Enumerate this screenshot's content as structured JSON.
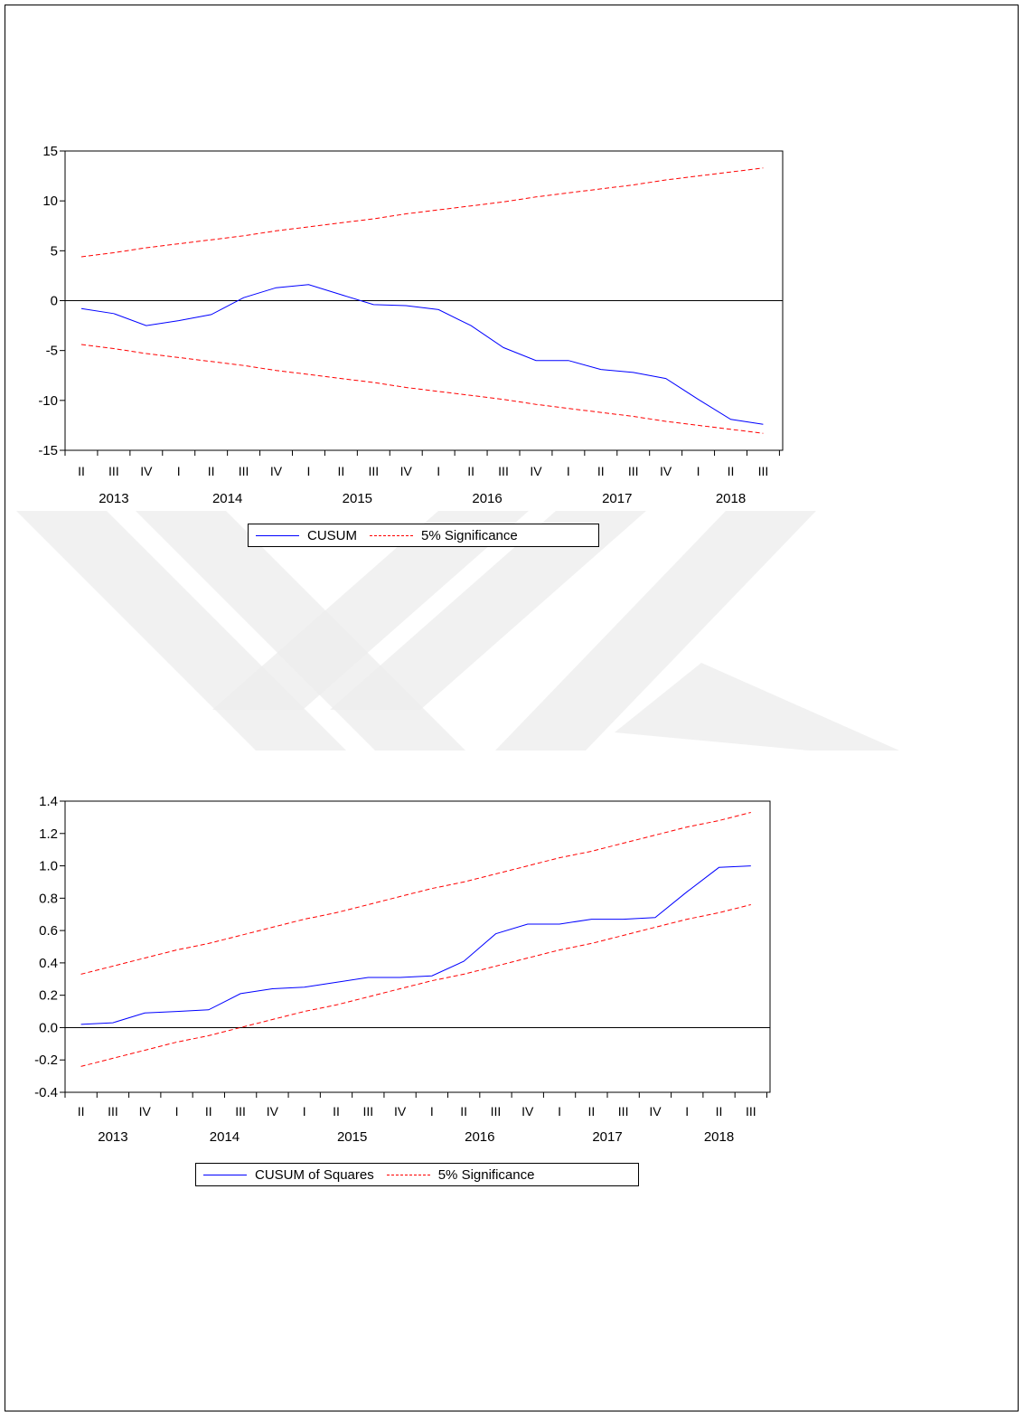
{
  "colors": {
    "statistic": "#0000ff",
    "bounds": "#ff0000",
    "zero_line": "#000000",
    "watermark": "#ececec"
  },
  "watermark": {
    "icon": "yok-logo-icon"
  },
  "chart_data": [
    {
      "type": "line",
      "title": "",
      "xlabel": "",
      "ylabel": "",
      "ylim": [
        -15,
        15
      ],
      "yticks": [
        "15",
        "10",
        "5",
        "0",
        "-5",
        "-10",
        "-15"
      ],
      "ytick_values": [
        15,
        10,
        5,
        0,
        -5,
        -10,
        -15
      ],
      "x_tick_labels": [
        "II",
        "III",
        "IV",
        "I",
        "II",
        "III",
        "IV",
        "I",
        "II",
        "III",
        "IV",
        "I",
        "II",
        "III",
        "IV",
        "I",
        "II",
        "III",
        "IV",
        "I",
        "II",
        "III"
      ],
      "years": [
        "2013",
        "2014",
        "2015",
        "2016",
        "2017",
        "2018"
      ],
      "x_periods": [
        "2013Q2",
        "2013Q3",
        "2013Q4",
        "2014Q1",
        "2014Q2",
        "2014Q3",
        "2014Q4",
        "2015Q1",
        "2015Q2",
        "2015Q3",
        "2015Q4",
        "2016Q1",
        "2016Q2",
        "2016Q3",
        "2016Q4",
        "2017Q1",
        "2017Q2",
        "2017Q3",
        "2017Q4",
        "2018Q1",
        "2018Q2",
        "2018Q3"
      ],
      "grid": false,
      "zero_line": true,
      "legend_position": "bottom-center",
      "series": [
        {
          "name": "CUSUM",
          "style": "solid",
          "values": [
            -0.8,
            -1.3,
            -2.5,
            -2.0,
            -1.4,
            0.3,
            1.3,
            1.6,
            0.6,
            -0.4,
            -0.5,
            -0.9,
            -2.5,
            -4.7,
            -6.0,
            -6.0,
            -6.9,
            -7.2,
            -7.8,
            -9.9,
            -11.9,
            -12.4
          ]
        },
        {
          "name": "5% Significance",
          "style": "dashed",
          "values": [
            4.4,
            4.8,
            5.3,
            5.7,
            6.1,
            6.5,
            7.0,
            7.4,
            7.8,
            8.2,
            8.7,
            9.1,
            9.5,
            9.9,
            10.4,
            10.8,
            11.2,
            11.6,
            12.1,
            12.5,
            12.9,
            13.3
          ]
        },
        {
          "name": "5% Significance",
          "style": "dashed",
          "legend": false,
          "values": [
            -4.4,
            -4.8,
            -5.3,
            -5.7,
            -6.1,
            -6.5,
            -7.0,
            -7.4,
            -7.8,
            -8.2,
            -8.7,
            -9.1,
            -9.5,
            -9.9,
            -10.4,
            -10.8,
            -11.2,
            -11.6,
            -12.1,
            -12.5,
            -12.9,
            -13.3
          ]
        }
      ]
    },
    {
      "type": "line",
      "title": "",
      "xlabel": "",
      "ylabel": "",
      "ylim": [
        -0.4,
        1.4
      ],
      "yticks": [
        "1.4",
        "1.2",
        "1.0",
        "0.8",
        "0.6",
        "0.4",
        "0.2",
        "0.0",
        "-0.2",
        "-0.4"
      ],
      "ytick_values": [
        1.4,
        1.2,
        1.0,
        0.8,
        0.6,
        0.4,
        0.2,
        0.0,
        -0.2,
        -0.4
      ],
      "x_tick_labels": [
        "II",
        "III",
        "IV",
        "I",
        "II",
        "III",
        "IV",
        "I",
        "II",
        "III",
        "IV",
        "I",
        "II",
        "III",
        "IV",
        "I",
        "II",
        "III",
        "IV",
        "I",
        "II",
        "III"
      ],
      "years": [
        "2013",
        "2014",
        "2015",
        "2016",
        "2017",
        "2018"
      ],
      "x_periods": [
        "2013Q2",
        "2013Q3",
        "2013Q4",
        "2014Q1",
        "2014Q2",
        "2014Q3",
        "2014Q4",
        "2015Q1",
        "2015Q2",
        "2015Q3",
        "2015Q4",
        "2016Q1",
        "2016Q2",
        "2016Q3",
        "2016Q4",
        "2017Q1",
        "2017Q2",
        "2017Q3",
        "2017Q4",
        "2018Q1",
        "2018Q2",
        "2018Q3"
      ],
      "grid": false,
      "zero_line": true,
      "legend_position": "bottom-center",
      "series": [
        {
          "name": "CUSUM of Squares",
          "style": "solid",
          "values": [
            0.02,
            0.03,
            0.09,
            0.1,
            0.11,
            0.21,
            0.24,
            0.25,
            0.28,
            0.31,
            0.31,
            0.32,
            0.41,
            0.58,
            0.64,
            0.64,
            0.67,
            0.67,
            0.68,
            0.84,
            0.99,
            1.0
          ]
        },
        {
          "name": "5% Significance",
          "style": "dashed",
          "values": [
            0.33,
            0.38,
            0.43,
            0.48,
            0.52,
            0.57,
            0.62,
            0.67,
            0.71,
            0.76,
            0.81,
            0.86,
            0.9,
            0.95,
            1.0,
            1.05,
            1.09,
            1.14,
            1.19,
            1.24,
            1.28,
            1.33
          ]
        },
        {
          "name": "5% Significance",
          "style": "dashed",
          "legend": false,
          "values": [
            -0.24,
            -0.19,
            -0.14,
            -0.09,
            -0.05,
            0.0,
            0.05,
            0.1,
            0.14,
            0.19,
            0.24,
            0.29,
            0.33,
            0.38,
            0.43,
            0.48,
            0.52,
            0.57,
            0.62,
            0.67,
            0.71,
            0.76
          ]
        }
      ]
    }
  ]
}
